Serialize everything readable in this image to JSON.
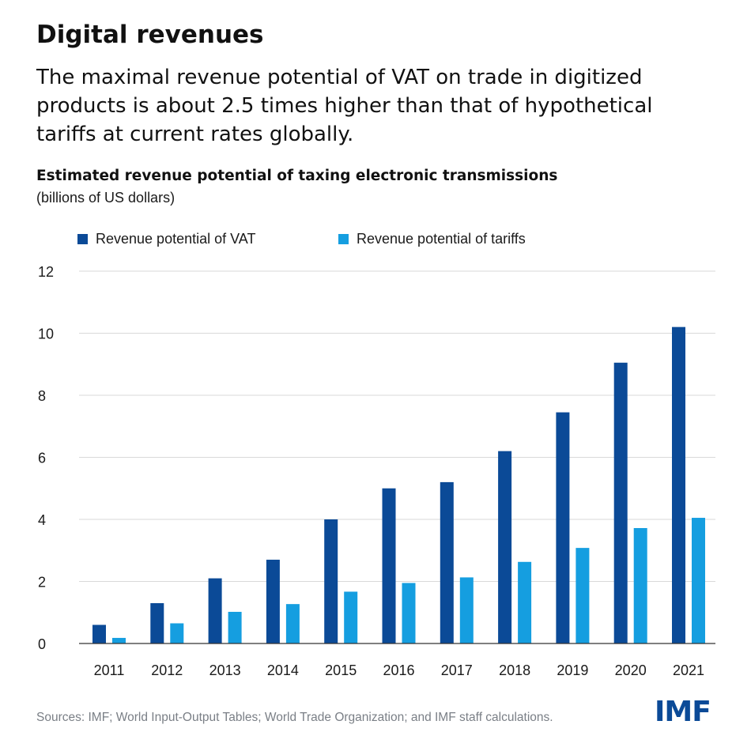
{
  "header": {
    "title": "Digital revenues",
    "subtitle": "The maximal revenue potential of VAT on trade in digitized products is about 2.5 times higher than that of hypothetical tariffs at current rates globally."
  },
  "chart_data": {
    "type": "bar",
    "title": "Estimated revenue potential of taxing electronic transmissions",
    "unit": "(billions of US dollars)",
    "categories": [
      "2011",
      "2012",
      "2013",
      "2014",
      "2015",
      "2016",
      "2017",
      "2018",
      "2019",
      "2020",
      "2021"
    ],
    "series": [
      {
        "name": "Revenue potential of VAT",
        "color": "#0b4a97",
        "values": [
          0.6,
          1.3,
          2.1,
          2.7,
          4.0,
          5.0,
          5.2,
          6.2,
          7.45,
          9.05,
          10.2
        ]
      },
      {
        "name": "Revenue potential of tariffs",
        "color": "#159ee0",
        "values": [
          0.18,
          0.65,
          1.02,
          1.27,
          1.67,
          1.95,
          2.13,
          2.63,
          3.08,
          3.72,
          4.05
        ]
      }
    ],
    "ylim": [
      0,
      12
    ],
    "yticks": [
      0,
      2,
      4,
      6,
      8,
      10,
      12
    ],
    "grid": true,
    "legend_position": "top-left"
  },
  "footer": {
    "source": "Sources: IMF; World Input-Output Tables; World Trade Organization; and IMF staff calculations.",
    "logo_text": "IMF"
  }
}
